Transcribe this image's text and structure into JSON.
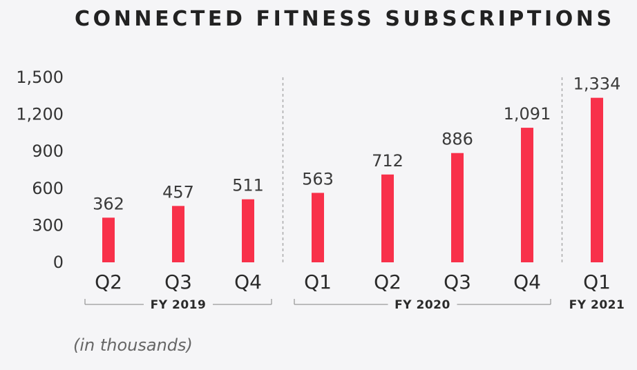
{
  "chart_data": {
    "type": "bar",
    "title": "CONNECTED FITNESS SUBSCRIPTIONS",
    "note": "(in thousands)",
    "categories": [
      "Q2",
      "Q3",
      "Q4",
      "Q1",
      "Q2",
      "Q3",
      "Q4",
      "Q1"
    ],
    "values": [
      362,
      457,
      511,
      563,
      712,
      886,
      1091,
      1334
    ],
    "value_labels": [
      "362",
      "457",
      "511",
      "563",
      "712",
      "886",
      "1,091",
      "1,334"
    ],
    "groups": [
      {
        "label": "FY 2019",
        "from": 0,
        "to": 2
      },
      {
        "label": "FY 2020",
        "from": 3,
        "to": 6
      },
      {
        "label": "FY 2021",
        "from": 7,
        "to": 7
      }
    ],
    "yticks": [
      0,
      300,
      600,
      900,
      1200,
      1500
    ],
    "ytick_labels": [
      "0",
      "300",
      "600",
      "900",
      "1,200",
      "1,500"
    ],
    "ylim": [
      0,
      1500
    ],
    "xlabel": "",
    "ylabel": "",
    "grid": false,
    "colors": {
      "bar": "#f8314a",
      "separator": "#aaaaaa",
      "bracket": "#999999"
    }
  }
}
